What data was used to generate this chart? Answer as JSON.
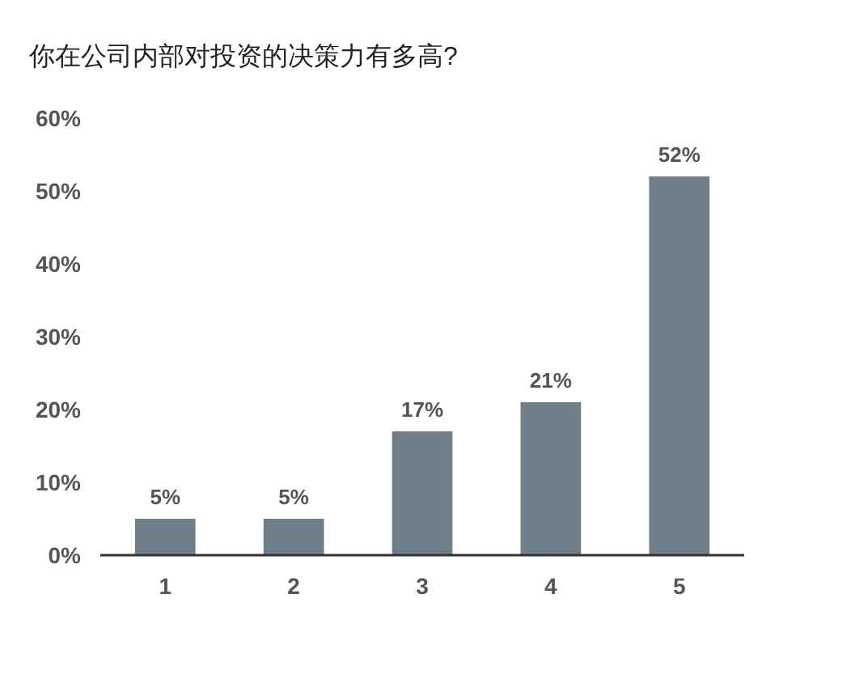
{
  "chart_data": {
    "type": "bar",
    "title": "你在公司内部对投资的决策力有多高?",
    "categories": [
      "1",
      "2",
      "3",
      "4",
      "5"
    ],
    "values": [
      5,
      5,
      17,
      21,
      52
    ],
    "value_labels": [
      "5%",
      "5%",
      "17%",
      "21%",
      "52%"
    ],
    "color": "#6e7f8a",
    "ylim": [
      0,
      60
    ],
    "yticks": [
      {
        "value": 0,
        "label": "0%"
      },
      {
        "value": 10,
        "label": "10%"
      },
      {
        "value": 20,
        "label": "20%"
      },
      {
        "value": 30,
        "label": "30%"
      },
      {
        "value": 40,
        "label": "40%"
      },
      {
        "value": 50,
        "label": "50%"
      },
      {
        "value": 60,
        "label": "60%"
      }
    ],
    "grid": false
  }
}
